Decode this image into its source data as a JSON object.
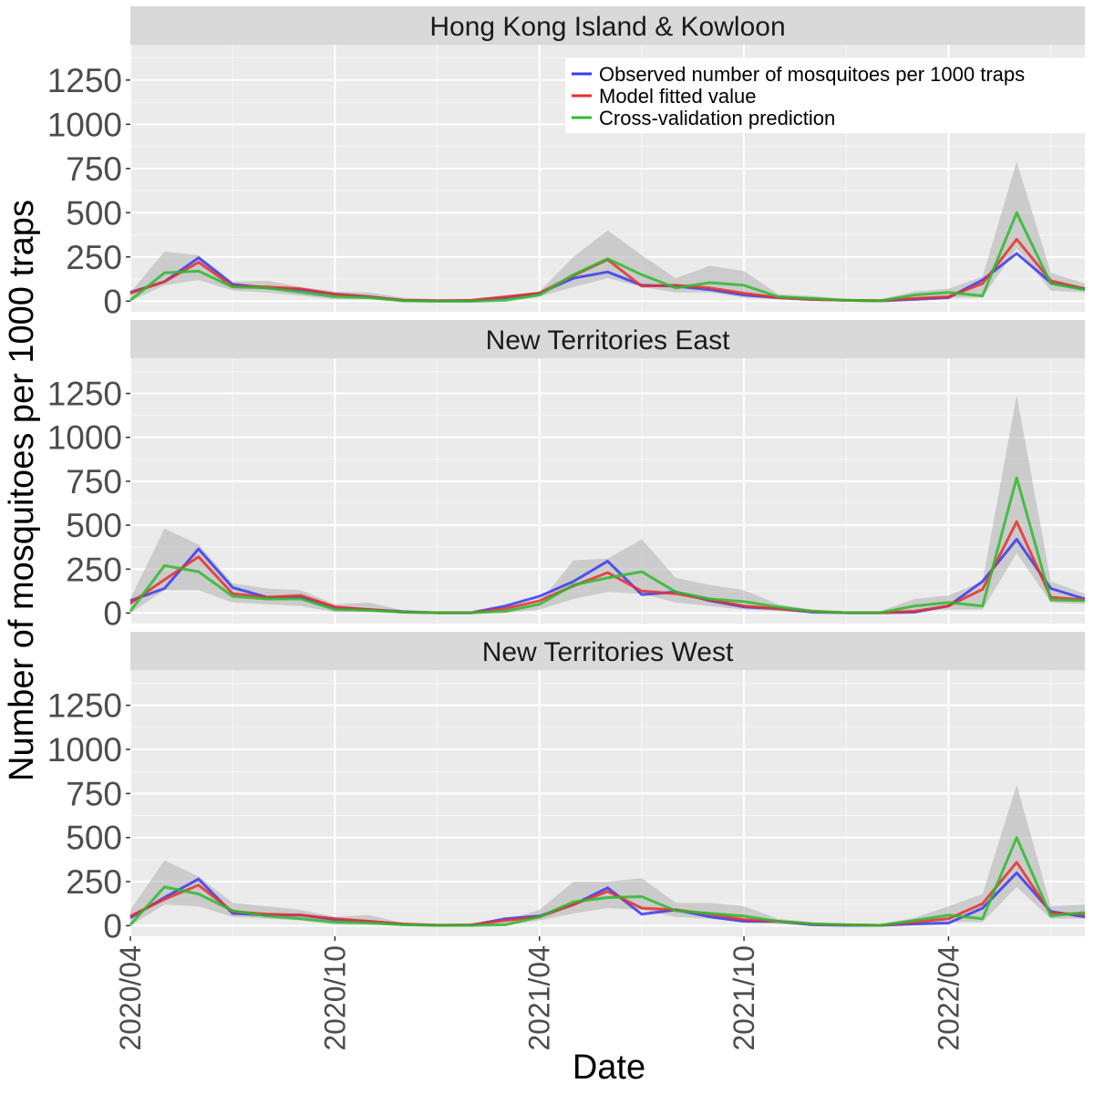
{
  "chart_data": {
    "type": "line",
    "ylabel": "Number of mosquitoes per 1000 traps",
    "xlabel": "Date",
    "ylim": [
      -60,
      1450
    ],
    "y_ticks": [
      0,
      250,
      500,
      750,
      1000,
      1250
    ],
    "x_range_month_index": [
      0,
      28
    ],
    "x_ticks": [
      {
        "label": "2020/04",
        "month_index": 0
      },
      {
        "label": "2020/10",
        "month_index": 6
      },
      {
        "label": "2021/04",
        "month_index": 12
      },
      {
        "label": "2021/10",
        "month_index": 18
      },
      {
        "label": "2022/04",
        "month_index": 24
      }
    ],
    "months": [
      "2020/04",
      "2020/05",
      "2020/06",
      "2020/07",
      "2020/08",
      "2020/09",
      "2020/10",
      "2020/11",
      "2020/12",
      "2021/01",
      "2021/02",
      "2021/03",
      "2021/04",
      "2021/05",
      "2021/06",
      "2021/07",
      "2021/08",
      "2021/09",
      "2021/10",
      "2021/11",
      "2021/12",
      "2022/01",
      "2022/02",
      "2022/03",
      "2022/04",
      "2022/05",
      "2022/06",
      "2022/07",
      "2022/08"
    ],
    "legend": {
      "position": "top-right",
      "entries": [
        {
          "label": "Observed number of mosquitoes per 1000 traps",
          "color": "#3a3af0"
        },
        {
          "label": "Model fitted value",
          "color": "#e8302e"
        },
        {
          "label": "Cross-validation prediction",
          "color": "#2dbb2d"
        }
      ]
    },
    "band_color": "#b0b0b0",
    "panels": [
      {
        "title": "Hong Kong Island & Kowloon",
        "band_upper": [
          50,
          280,
          260,
          110,
          115,
          80,
          55,
          50,
          20,
          10,
          10,
          30,
          55,
          250,
          400,
          260,
          130,
          200,
          170,
          40,
          30,
          10,
          10,
          55,
          70,
          140,
          790,
          160,
          100
        ],
        "band_lower": [
          0,
          90,
          120,
          60,
          50,
          30,
          10,
          10,
          0,
          0,
          0,
          5,
          25,
          80,
          130,
          80,
          50,
          50,
          20,
          10,
          0,
          0,
          0,
          5,
          20,
          20,
          300,
          60,
          50
        ],
        "series": [
          {
            "name": "Observed number of mosquitoes per 1000 traps",
            "values": [
              50,
              110,
              245,
              95,
              75,
              65,
              40,
              25,
              5,
              2,
              2,
              20,
              45,
              130,
              165,
              90,
              85,
              65,
              35,
              20,
              10,
              5,
              2,
              10,
              20,
              120,
              270,
              105,
              70
            ]
          },
          {
            "name": "Model fitted value",
            "values": [
              45,
              110,
              220,
              85,
              80,
              70,
              40,
              25,
              5,
              3,
              5,
              25,
              45,
              145,
              235,
              85,
              90,
              75,
              45,
              20,
              10,
              5,
              3,
              15,
              25,
              100,
              350,
              115,
              70
            ]
          },
          {
            "name": "Cross-validation prediction",
            "values": [
              5,
              160,
              170,
              80,
              75,
              50,
              25,
              20,
              2,
              0,
              0,
              5,
              35,
              150,
              240,
              150,
              75,
              105,
              90,
              25,
              15,
              5,
              2,
              35,
              50,
              30,
              500,
              100,
              65
            ]
          }
        ]
      },
      {
        "title": "New Territories East",
        "band_upper": [
          80,
          480,
          390,
          170,
          140,
          130,
          50,
          60,
          15,
          5,
          5,
          40,
          60,
          300,
          310,
          420,
          200,
          160,
          130,
          50,
          20,
          10,
          10,
          80,
          100,
          180,
          1240,
          180,
          110
        ],
        "band_lower": [
          0,
          130,
          130,
          60,
          50,
          40,
          5,
          5,
          0,
          0,
          0,
          0,
          20,
          80,
          120,
          110,
          60,
          40,
          20,
          10,
          0,
          0,
          0,
          10,
          20,
          20,
          340,
          60,
          50
        ],
        "series": [
          {
            "name": "Observed number of mosquitoes per 1000 traps",
            "values": [
              70,
              140,
              365,
              145,
              90,
              90,
              30,
              20,
              8,
              2,
              2,
              40,
              95,
              180,
              295,
              105,
              120,
              70,
              35,
              25,
              5,
              2,
              2,
              5,
              40,
              180,
              420,
              140,
              80
            ]
          },
          {
            "name": "Model fitted value",
            "values": [
              55,
              190,
              320,
              110,
              90,
              100,
              35,
              20,
              5,
              2,
              2,
              25,
              70,
              155,
              230,
              125,
              110,
              75,
              40,
              25,
              10,
              2,
              2,
              10,
              40,
              135,
              520,
              90,
              75
            ]
          },
          {
            "name": "Cross-validation prediction",
            "values": [
              10,
              270,
              235,
              95,
              80,
              80,
              20,
              15,
              5,
              2,
              2,
              10,
              50,
              160,
              200,
              235,
              120,
              80,
              65,
              35,
              10,
              2,
              2,
              40,
              60,
              40,
              770,
              75,
              70
            ]
          }
        ]
      },
      {
        "title": "New Territories West",
        "band_upper": [
          90,
          370,
          280,
          130,
          110,
          90,
          50,
          60,
          15,
          5,
          5,
          30,
          90,
          250,
          250,
          270,
          130,
          130,
          110,
          40,
          20,
          10,
          10,
          45,
          110,
          180,
          800,
          110,
          120
        ],
        "band_lower": [
          0,
          120,
          110,
          50,
          40,
          30,
          5,
          5,
          0,
          0,
          0,
          0,
          30,
          70,
          100,
          90,
          50,
          40,
          20,
          10,
          0,
          0,
          0,
          5,
          20,
          20,
          220,
          40,
          40
        ],
        "series": [
          {
            "name": "Observed number of mosquitoes per 1000 traps",
            "values": [
              45,
              160,
              265,
              70,
              60,
              60,
              35,
              25,
              8,
              2,
              2,
              40,
              55,
              120,
              215,
              65,
              90,
              50,
              25,
              25,
              5,
              2,
              2,
              10,
              15,
              100,
              300,
              80,
              50
            ]
          },
          {
            "name": "Model fitted value",
            "values": [
              55,
              150,
              230,
              80,
              65,
              60,
              40,
              25,
              10,
              3,
              5,
              30,
              50,
              120,
              195,
              100,
              90,
              65,
              35,
              25,
              10,
              5,
              2,
              20,
              40,
              125,
              360,
              70,
              65
            ]
          },
          {
            "name": "Cross-validation prediction",
            "values": [
              5,
              220,
              180,
              85,
              55,
              40,
              20,
              15,
              5,
              2,
              2,
              5,
              50,
              135,
              160,
              165,
              85,
              70,
              55,
              25,
              10,
              5,
              2,
              30,
              60,
              40,
              500,
              55,
              75
            ]
          }
        ]
      }
    ]
  }
}
